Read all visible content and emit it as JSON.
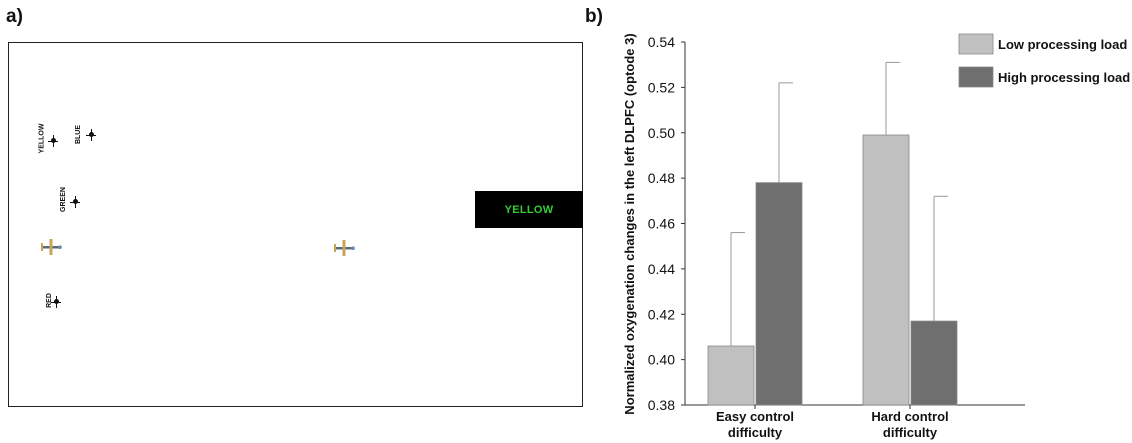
{
  "panels": {
    "a_label": "a)",
    "b_label": "b)"
  },
  "simulation": {
    "color_box_text": "YELLOW",
    "color_box_text_color": "#33cc33",
    "markers": [
      {
        "label": "YELLOW"
      },
      {
        "label": "BLUE"
      },
      {
        "label": "GREEN"
      },
      {
        "label": "RED"
      }
    ],
    "planes": [
      "plane-icon",
      "plane-icon"
    ]
  },
  "chart_data": {
    "type": "bar",
    "ylabel": "Normalized oxygenation changes in the left DLPFC (optode 3)",
    "ylim": [
      0.38,
      0.54
    ],
    "yticks": [
      "0.38",
      "0.40",
      "0.42",
      "0.44",
      "0.46",
      "0.48",
      "0.50",
      "0.52",
      "0.54"
    ],
    "categories": [
      {
        "line1": "Easy control",
        "line2": "difficulty"
      },
      {
        "line1": "Hard control",
        "line2": "difficulty"
      }
    ],
    "series": [
      {
        "name": "Low processing load",
        "color": "#c0c0c0",
        "values": [
          0.406,
          0.499
        ],
        "error_upper": [
          0.456,
          0.531
        ]
      },
      {
        "name": "High processing load",
        "color": "#6f6f6f",
        "values": [
          0.478,
          0.417
        ],
        "error_upper": [
          0.522,
          0.472
        ]
      }
    ],
    "legend_position": "top-right",
    "grid": false
  }
}
